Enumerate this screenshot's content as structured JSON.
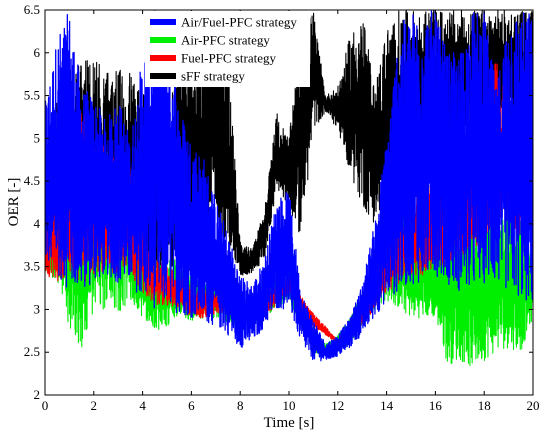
{
  "chart_data": {
    "type": "line",
    "xlabel": "Time [s]",
    "ylabel": "OER [-]",
    "xlim": [
      0,
      20
    ],
    "ylim": [
      2,
      6.5
    ],
    "xticks": [
      "0",
      "2",
      "4",
      "6",
      "8",
      "10",
      "12",
      "14",
      "16",
      "18",
      "20"
    ],
    "yticks": [
      "2",
      "2.5",
      "3",
      "3.5",
      "4",
      "4.5",
      "5",
      "5.5",
      "6",
      "6.5"
    ],
    "grid": false,
    "legend_position": "top-right",
    "series": [
      {
        "name": "Air/Fuel-PFC strategy",
        "color": "#0000ff",
        "envelope": {
          "x": [
            0,
            0.5,
            1,
            1.5,
            2,
            2.5,
            3,
            3.5,
            4,
            4.5,
            5,
            5.5,
            6,
            6.5,
            7,
            7.5,
            8,
            8.5,
            9,
            9.5,
            10,
            10.5,
            11,
            11.5,
            12,
            12.5,
            13,
            13.5,
            14,
            14.5,
            15,
            15.5,
            16,
            16.5,
            17,
            17.5,
            18,
            18.5,
            19,
            19.5,
            20
          ],
          "lower": [
            3.5,
            3.4,
            3.2,
            3.2,
            3.3,
            3.4,
            3.3,
            3.3,
            3.1,
            3.0,
            3.0,
            2.95,
            2.9,
            2.85,
            2.8,
            2.7,
            2.55,
            2.6,
            2.8,
            3.0,
            3.0,
            2.6,
            2.4,
            2.4,
            2.45,
            2.55,
            2.7,
            2.9,
            3.1,
            3.2,
            3.3,
            3.3,
            3.4,
            3.3,
            3.2,
            3.2,
            3.3,
            3.3,
            3.2,
            3.1,
            3.0
          ],
          "upper": [
            5.4,
            6.2,
            6.5,
            5.6,
            5.5,
            5.2,
            5.5,
            5.0,
            6.0,
            6.5,
            6.5,
            5.4,
            5.0,
            4.8,
            4.3,
            3.9,
            3.4,
            3.3,
            3.6,
            4.3,
            4.4,
            3.2,
            2.9,
            2.6,
            2.7,
            2.9,
            3.3,
            4.0,
            5.0,
            6.3,
            6.5,
            6.5,
            6.5,
            6.0,
            6.0,
            6.5,
            6.5,
            5.6,
            6.5,
            6.5,
            6.5
          ]
        }
      },
      {
        "name": "Air-PFC strategy",
        "color": "#00ee00",
        "envelope": {
          "x": [
            0,
            0.5,
            1,
            1.5,
            2,
            2.5,
            3,
            3.5,
            4,
            4.5,
            5,
            5.5,
            6,
            6.5,
            7,
            7.5,
            8,
            8.5,
            9,
            9.5,
            10,
            10.5,
            11,
            11.5,
            12,
            12.5,
            13,
            13.5,
            14,
            14.5,
            15,
            15.5,
            16,
            16.5,
            17,
            17.5,
            18,
            18.5,
            19,
            19.5,
            20
          ],
          "lower": [
            3.5,
            3.2,
            2.8,
            2.5,
            3.0,
            3.0,
            2.9,
            3.1,
            2.9,
            2.75,
            2.8,
            2.95,
            2.85,
            2.9,
            2.9,
            2.85,
            2.7,
            2.8,
            2.9,
            3.0,
            3.1,
            2.8,
            2.5,
            2.45,
            2.5,
            2.6,
            2.8,
            3.0,
            3.1,
            3.0,
            2.9,
            2.9,
            2.9,
            2.35,
            2.4,
            2.3,
            2.4,
            2.5,
            2.55,
            2.5,
            2.9
          ],
          "upper": [
            3.6,
            4.2,
            4.6,
            4.9,
            5.0,
            4.9,
            4.6,
            4.6,
            3.9,
            3.6,
            3.6,
            3.6,
            3.4,
            3.3,
            3.3,
            3.3,
            3.1,
            3.2,
            3.3,
            3.4,
            3.5,
            3.1,
            2.8,
            2.6,
            2.7,
            2.9,
            3.2,
            3.6,
            4.3,
            4.2,
            3.9,
            4.0,
            3.9,
            4.2,
            4.5,
            4.2,
            4.1,
            4.2,
            4.2,
            4.1,
            3.6
          ]
        }
      },
      {
        "name": "Fuel-PFC strategy",
        "color": "#ff0000",
        "envelope": {
          "x": [
            0,
            0.5,
            1,
            1.5,
            2,
            2.5,
            3,
            3.5,
            4,
            4.5,
            5,
            5.5,
            6,
            6.5,
            7,
            7.5,
            8,
            8.5,
            9,
            9.5,
            10,
            10.5,
            11,
            11.5,
            12,
            12.5,
            13,
            13.5,
            14,
            14.5,
            15,
            15.5,
            16,
            16.5,
            17,
            17.5,
            18,
            18.5,
            19,
            19.5,
            20
          ],
          "lower": [
            3.4,
            3.3,
            3.4,
            3.3,
            3.4,
            3.4,
            3.4,
            3.4,
            3.2,
            3.05,
            3.05,
            3.0,
            2.9,
            2.9,
            2.95,
            2.95,
            2.8,
            2.8,
            2.9,
            3.05,
            3.2,
            2.95,
            2.8,
            2.7,
            2.6,
            2.7,
            2.8,
            3.0,
            3.2,
            3.3,
            3.4,
            3.4,
            3.5,
            3.5,
            3.6,
            3.7,
            3.8,
            4.0,
            3.9,
            3.8,
            3.7
          ],
          "upper": [
            3.8,
            4.8,
            5.2,
            5.5,
            5.1,
            4.9,
            4.8,
            4.7,
            4.0,
            3.6,
            3.5,
            3.4,
            3.3,
            3.25,
            3.2,
            3.2,
            3.1,
            3.05,
            3.15,
            3.3,
            3.4,
            3.15,
            2.95,
            2.8,
            2.65,
            2.8,
            3.0,
            3.3,
            3.7,
            4.0,
            4.4,
            4.6,
            4.4,
            4.5,
            4.6,
            4.5,
            5.0,
            6.0,
            5.4,
            4.9,
            4.5
          ]
        }
      },
      {
        "name": "sFF strategy",
        "color": "#000000",
        "envelope": {
          "x": [
            0,
            0.5,
            1,
            1.5,
            2,
            2.5,
            3,
            3.5,
            4,
            4.5,
            5,
            5.5,
            6,
            6.5,
            7,
            7.5,
            8,
            8.5,
            9,
            9.5,
            10,
            10.5,
            11,
            11.5,
            12,
            12.5,
            13,
            13.5,
            14,
            14.5,
            15,
            15.5,
            16,
            16.5,
            17,
            17.5,
            18,
            18.5,
            19,
            19.5,
            20
          ],
          "lower": [
            3.6,
            3.6,
            3.5,
            3.5,
            3.5,
            3.6,
            3.5,
            3.6,
            3.5,
            3.4,
            3.4,
            3.4,
            3.5,
            3.7,
            4.0,
            3.7,
            3.4,
            3.4,
            3.6,
            4.4,
            4.2,
            3.8,
            5.1,
            5.3,
            5.1,
            4.6,
            4.2,
            4.0,
            4.0,
            4.1,
            4.3,
            4.5,
            4.6,
            4.8,
            4.9,
            5.0,
            5.0,
            5.1,
            5.2,
            5.1,
            5.0
          ],
          "upper": [
            4.5,
            5.5,
            5.8,
            5.9,
            6.0,
            5.8,
            5.8,
            5.8,
            5.6,
            5.3,
            5.4,
            6.0,
            6.0,
            6.3,
            6.4,
            6.0,
            3.8,
            3.7,
            4.2,
            5.3,
            5.0,
            6.3,
            6.5,
            5.5,
            5.6,
            6.2,
            6.5,
            5.6,
            6.3,
            6.5,
            6.5,
            6.5,
            6.5,
            6.5,
            6.5,
            6.5,
            6.5,
            6.5,
            6.5,
            6.5,
            6.5
          ]
        }
      }
    ]
  }
}
